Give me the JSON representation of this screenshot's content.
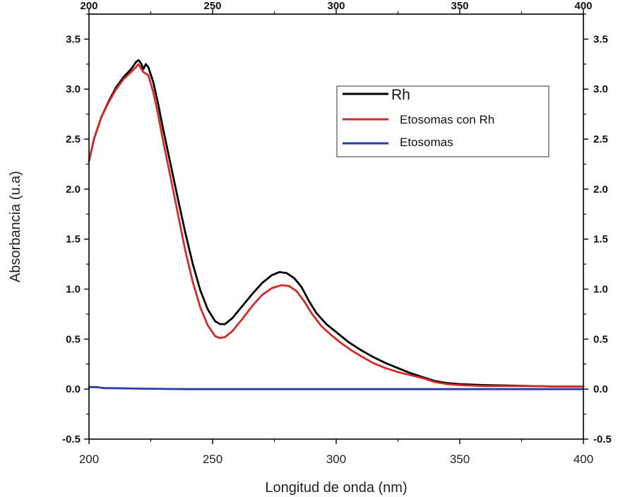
{
  "chart_data": {
    "type": "line",
    "xlabel": "Longitud de onda (nm)",
    "ylabel": "Absorbancia (u.a)",
    "xlim": [
      200,
      400
    ],
    "ylim": [
      -0.5,
      3.75
    ],
    "x_ticks": [
      "200",
      "250",
      "300",
      "350",
      "400"
    ],
    "y_ticks": [
      "-0.5",
      "0.0",
      "0.5",
      "1.0",
      "1.5",
      "2.0",
      "2.5",
      "3.0",
      "3.5"
    ],
    "legend_position": "top-right",
    "series": [
      {
        "name": "Rh",
        "color": "#000000",
        "points": [
          [
            200,
            2.28
          ],
          [
            202,
            2.5
          ],
          [
            205,
            2.72
          ],
          [
            208,
            2.88
          ],
          [
            211,
            3.02
          ],
          [
            214,
            3.12
          ],
          [
            217,
            3.2
          ],
          [
            219,
            3.27
          ],
          [
            220,
            3.29
          ],
          [
            221,
            3.26
          ],
          [
            222,
            3.2
          ],
          [
            223,
            3.25
          ],
          [
            224,
            3.22
          ],
          [
            226,
            3.07
          ],
          [
            228,
            2.85
          ],
          [
            230,
            2.6
          ],
          [
            233,
            2.25
          ],
          [
            236,
            1.9
          ],
          [
            239,
            1.56
          ],
          [
            242,
            1.25
          ],
          [
            245,
            0.99
          ],
          [
            248,
            0.8
          ],
          [
            251,
            0.68
          ],
          [
            253,
            0.65
          ],
          [
            255,
            0.65
          ],
          [
            258,
            0.71
          ],
          [
            262,
            0.83
          ],
          [
            266,
            0.95
          ],
          [
            270,
            1.06
          ],
          [
            274,
            1.14
          ],
          [
            277,
            1.17
          ],
          [
            280,
            1.16
          ],
          [
            283,
            1.11
          ],
          [
            286,
            1.02
          ],
          [
            289,
            0.88
          ],
          [
            292,
            0.76
          ],
          [
            296,
            0.65
          ],
          [
            300,
            0.57
          ],
          [
            305,
            0.47
          ],
          [
            310,
            0.39
          ],
          [
            315,
            0.32
          ],
          [
            320,
            0.26
          ],
          [
            325,
            0.21
          ],
          [
            330,
            0.16
          ],
          [
            335,
            0.12
          ],
          [
            340,
            0.08
          ],
          [
            345,
            0.06
          ],
          [
            350,
            0.05
          ],
          [
            360,
            0.04
          ],
          [
            370,
            0.035
          ],
          [
            380,
            0.03
          ],
          [
            390,
            0.025
          ],
          [
            400,
            0.025
          ]
        ]
      },
      {
        "name": "Etosomas con Rh",
        "color": "#d42a2a",
        "points": [
          [
            200,
            2.28
          ],
          [
            202,
            2.5
          ],
          [
            205,
            2.72
          ],
          [
            208,
            2.87
          ],
          [
            211,
            3.0
          ],
          [
            214,
            3.1
          ],
          [
            217,
            3.17
          ],
          [
            219,
            3.22
          ],
          [
            220,
            3.25
          ],
          [
            221,
            3.21
          ],
          [
            222,
            3.17
          ],
          [
            224,
            3.14
          ],
          [
            226,
            2.97
          ],
          [
            228,
            2.74
          ],
          [
            230,
            2.48
          ],
          [
            233,
            2.12
          ],
          [
            236,
            1.75
          ],
          [
            239,
            1.38
          ],
          [
            242,
            1.07
          ],
          [
            245,
            0.82
          ],
          [
            248,
            0.64
          ],
          [
            251,
            0.53
          ],
          [
            253,
            0.51
          ],
          [
            255,
            0.52
          ],
          [
            258,
            0.58
          ],
          [
            262,
            0.7
          ],
          [
            266,
            0.83
          ],
          [
            270,
            0.94
          ],
          [
            274,
            1.01
          ],
          [
            278,
            1.04
          ],
          [
            281,
            1.03
          ],
          [
            284,
            0.98
          ],
          [
            287,
            0.88
          ],
          [
            290,
            0.76
          ],
          [
            294,
            0.63
          ],
          [
            298,
            0.54
          ],
          [
            302,
            0.46
          ],
          [
            306,
            0.39
          ],
          [
            310,
            0.33
          ],
          [
            315,
            0.26
          ],
          [
            320,
            0.21
          ],
          [
            325,
            0.17
          ],
          [
            330,
            0.14
          ],
          [
            335,
            0.11
          ],
          [
            340,
            0.07
          ],
          [
            345,
            0.05
          ],
          [
            350,
            0.04
          ],
          [
            360,
            0.03
          ],
          [
            370,
            0.03
          ],
          [
            380,
            0.03
          ],
          [
            390,
            0.025
          ],
          [
            400,
            0.025
          ]
        ]
      },
      {
        "name": "Etosomas",
        "color": "#2b3aa8",
        "points": [
          [
            200,
            0.02
          ],
          [
            203,
            0.02
          ],
          [
            206,
            0.01
          ],
          [
            210,
            0.01
          ],
          [
            220,
            0.005
          ],
          [
            240,
            0.0
          ],
          [
            300,
            0.0
          ],
          [
            350,
            0.0
          ],
          [
            400,
            0.0
          ]
        ]
      }
    ]
  }
}
